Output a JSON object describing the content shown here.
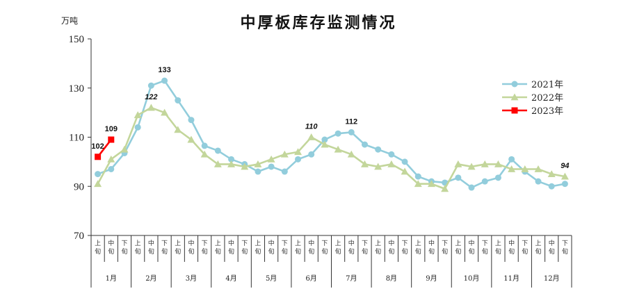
{
  "chart_data": {
    "type": "line",
    "title": "中厚板库存监测情况",
    "unit_label": "万吨",
    "ylim": [
      70,
      150
    ],
    "yticks": [
      70,
      90,
      110,
      130,
      150
    ],
    "grid": false,
    "legend_position": "top-right",
    "months": [
      "1月",
      "2月",
      "3月",
      "4月",
      "5月",
      "6月",
      "7月",
      "8月",
      "9月",
      "10月",
      "11月",
      "12月"
    ],
    "sub_periods": [
      "上",
      "中",
      "下"
    ],
    "period_suffix": "旬",
    "series": [
      {
        "name": "2021年",
        "color": "#92CDDC",
        "marker": "circle",
        "values": [
          95,
          97,
          103.5,
          114,
          131,
          133,
          125,
          117,
          106.5,
          104.5,
          101,
          99,
          96,
          98,
          96,
          101,
          103,
          109,
          111.5,
          112,
          107,
          105,
          103,
          100,
          94,
          92,
          91.5,
          93.5,
          89.5,
          92,
          93.5,
          101,
          96,
          92,
          90,
          91
        ]
      },
      {
        "name": "2022年",
        "color": "#C3D69B",
        "marker": "triangle",
        "values": [
          91,
          101,
          105,
          119,
          122,
          120,
          113,
          109,
          103,
          99,
          99,
          98,
          99,
          101,
          103,
          104,
          110,
          107,
          105,
          103,
          99,
          98,
          99,
          96,
          91,
          91,
          89,
          99,
          98,
          99,
          99,
          97,
          97,
          97,
          95,
          94
        ]
      },
      {
        "name": "2023年",
        "color": "#FF0000",
        "marker": "square",
        "values": [
          102,
          109
        ]
      }
    ],
    "annotations": [
      {
        "text": "133",
        "index": 5,
        "value": 133,
        "italic": false
      },
      {
        "text": "122",
        "index": 4,
        "value": 122,
        "italic": true
      },
      {
        "text": "110",
        "index": 16,
        "value": 110,
        "italic": true
      },
      {
        "text": "112",
        "index": 19,
        "value": 112,
        "italic": false
      },
      {
        "text": "94",
        "index": 35,
        "value": 94,
        "italic": true
      },
      {
        "text": "102",
        "index": 0,
        "value": 102,
        "italic": false
      },
      {
        "text": "109",
        "index": 1,
        "value": 109,
        "italic": false
      }
    ]
  }
}
